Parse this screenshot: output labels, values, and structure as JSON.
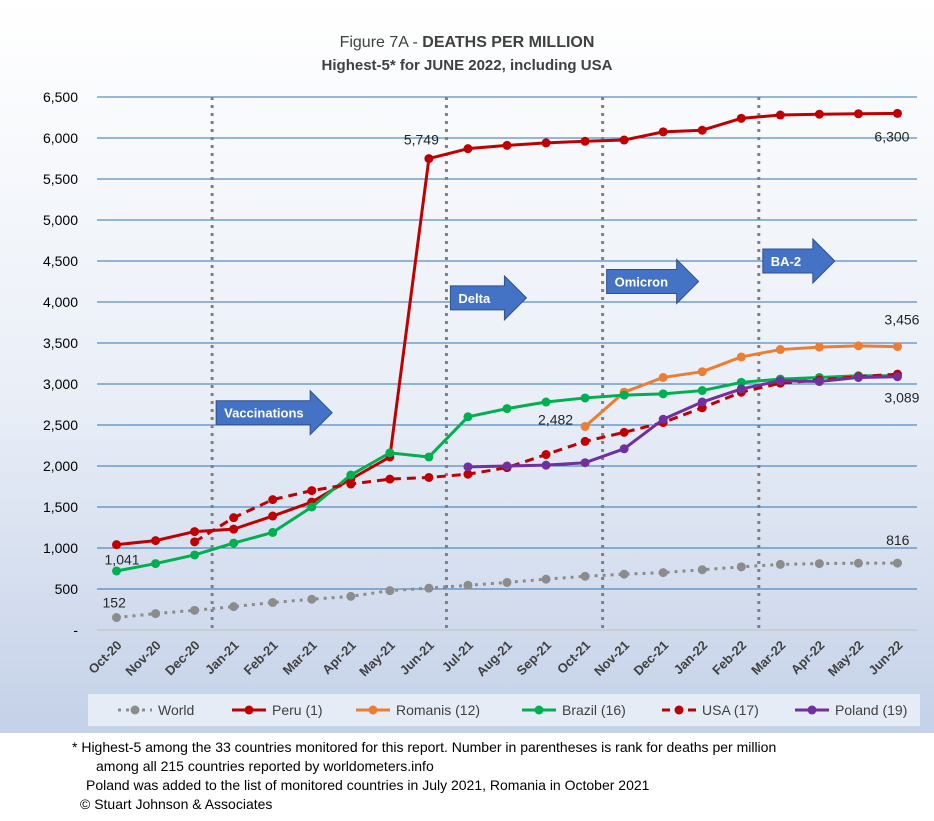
{
  "chart_data": {
    "type": "line",
    "title_prefix": "Figure 7A - ",
    "title_bold": "DEATHS PER MILLION",
    "subtitle": "Highest-5* for JUNE 2022, including USA",
    "categories": [
      "Oct-20",
      "Nov-20",
      "Dec-20",
      "Jan-21",
      "Feb-21",
      "Mar-21",
      "Apr-21",
      "May-21",
      "Jun-21",
      "Jul-21",
      "Aug-21",
      "Sep-21",
      "Oct-21",
      "Nov-21",
      "Dec-21",
      "Jan-22",
      "Feb-22",
      "Mar-22",
      "Apr-22",
      "May-22",
      "Jun-22"
    ],
    "ylim": [
      0,
      6500
    ],
    "yticks": [
      0,
      500,
      1000,
      1500,
      2000,
      2500,
      3000,
      3500,
      4000,
      4500,
      5000,
      5500,
      6000,
      6500
    ],
    "ytick_labels": [
      "-",
      "500",
      "1,000",
      "1,500",
      "2,000",
      "2,500",
      "3,000",
      "3,500",
      "4,000",
      "4,500",
      "5,000",
      "5,500",
      "6,000",
      "6,500"
    ],
    "grid": true,
    "legend_position": "bottom",
    "series": [
      {
        "name": "World",
        "color": "#8c8c8c",
        "style": "dotted",
        "values": [
          152,
          200,
          240,
          285,
          335,
          375,
          410,
          480,
          510,
          545,
          580,
          620,
          655,
          680,
          700,
          735,
          770,
          800,
          810,
          815,
          816
        ]
      },
      {
        "name": "Peru (1)",
        "color": "#c00000",
        "style": "solid",
        "values": [
          1041,
          1090,
          1200,
          1230,
          1390,
          1560,
          1840,
          2110,
          5749,
          5870,
          5910,
          5940,
          5960,
          5975,
          6075,
          6095,
          6240,
          6280,
          6290,
          6295,
          6300
        ]
      },
      {
        "name": "Romanis (12)",
        "color": "#ed7d31",
        "style": "solid",
        "values": [
          null,
          null,
          null,
          null,
          null,
          null,
          null,
          null,
          null,
          null,
          null,
          null,
          2482,
          2900,
          3080,
          3150,
          3330,
          3420,
          3450,
          3465,
          3456
        ]
      },
      {
        "name": "Brazil (16)",
        "color": "#00b050",
        "style": "solid",
        "values": [
          720,
          810,
          915,
          1060,
          1190,
          1500,
          1890,
          2160,
          2110,
          2600,
          2700,
          2780,
          2830,
          2865,
          2880,
          2920,
          3020,
          3060,
          3080,
          3100,
          3100
        ]
      },
      {
        "name": "USA (17)",
        "color": "#c00000",
        "style": "dashed",
        "values": [
          null,
          null,
          1075,
          1370,
          1590,
          1700,
          1780,
          1840,
          1860,
          1900,
          1980,
          2140,
          2300,
          2410,
          2530,
          2710,
          2900,
          3010,
          3050,
          3090,
          3120
        ]
      },
      {
        "name": "Poland (19)",
        "color": "#7030a0",
        "style": "solid",
        "values": [
          null,
          null,
          null,
          null,
          null,
          null,
          null,
          null,
          null,
          1990,
          2000,
          2010,
          2040,
          2210,
          2570,
          2780,
          2940,
          3040,
          3030,
          3080,
          3089
        ]
      }
    ],
    "annotations": [
      {
        "text": "5,749",
        "x": "Jun-21",
        "y": 5749
      },
      {
        "text": "6,300",
        "x": "Jun-22",
        "y": 6300
      },
      {
        "text": "3,456",
        "x": "Jun-22",
        "y": 3456
      },
      {
        "text": "3,089",
        "x": "Jun-22",
        "y": 3089
      },
      {
        "text": "2,482",
        "x": "Oct-21",
        "y": 2482
      },
      {
        "text": "816",
        "x": "Jun-22",
        "y": 816
      },
      {
        "text": "1,041",
        "x": "Oct-20",
        "y": 1041
      },
      {
        "text": "152",
        "x": "Oct-20",
        "y": 152
      }
    ],
    "vlines": [
      "Jan-21",
      "Jul-21",
      "Nov-21",
      "Mar-22"
    ],
    "arrows": [
      {
        "text": "Vaccinations",
        "x": "Jan-21",
        "y": 2650
      },
      {
        "text": "Delta",
        "x": "Jul-21",
        "y": 4050
      },
      {
        "text": "Omicron",
        "x": "Nov-21",
        "y": 4250
      },
      {
        "text": "BA-2",
        "x": "Mar-22",
        "y": 4500
      }
    ]
  },
  "footnotes": [
    "* Highest-5 among the 33 countries monitored for this report. Number in parentheses is rank for deaths per million",
    "among all 215 countries reported by worldometers.info",
    "Poland was added to the list of monitored countries in July 2021, Romania in October 2021",
    "© Stuart Johnson & Associates"
  ]
}
